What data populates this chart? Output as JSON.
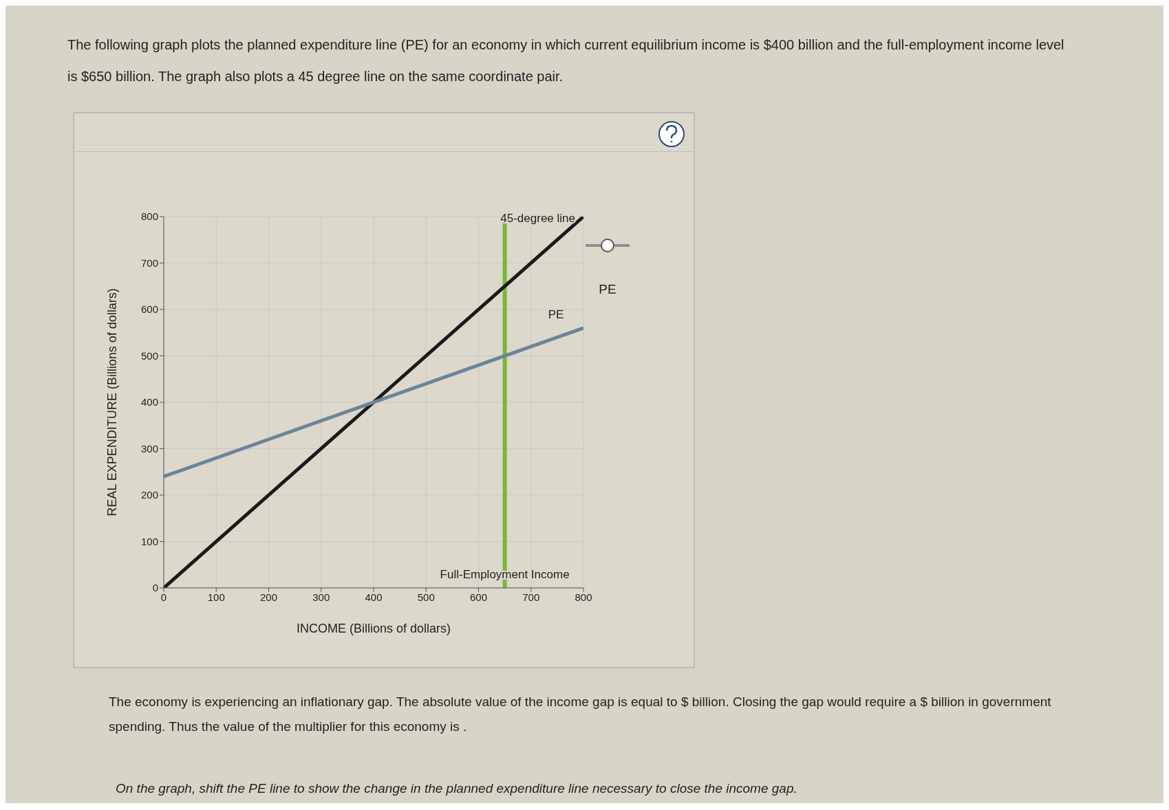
{
  "chart_data": {
    "type": "line",
    "title": "The following graph plots the planned expenditure line (PE) for an economy in which current equilibrium income is $400 billion and the full-employment income level is $650 billion. The graph also plots a 45 degree line on the same coordinate pair.",
    "xlabel": "INCOME (Billions of dollars)",
    "ylabel": "REAL EXPENDITURE (Billions of dollars)",
    "x": [
      0,
      800
    ],
    "series": [
      {
        "name": "45-degree line",
        "color": "#1a1a1a",
        "values": [
          0,
          800
        ]
      },
      {
        "name": "PE",
        "color": "#6b8499",
        "values": [
          240,
          560
        ]
      }
    ],
    "xlim": [
      0,
      800
    ],
    "xticks": [
      0,
      100,
      200,
      300,
      400,
      500,
      600,
      700,
      800
    ],
    "ylim": [
      0,
      800
    ],
    "yticks": [
      0,
      100,
      200,
      300,
      400,
      500,
      600,
      700,
      800
    ],
    "grid": true,
    "legend": false,
    "marker": "none",
    "line_style": "solid",
    "ref_lines": [
      {
        "axis": "x",
        "value": 650,
        "label": "Full-Employment Income",
        "color": "#7ab833"
      }
    ],
    "annotations": [
      "PE",
      "The economy is experiencing an inflationary gap. The absolute value of the income gap is equal to $ billion. Closing the gap would require a $ billion in government spending. Thus the value of the multiplier for this economy is .",
      "On the graph, shift the PE line to show the change in the planned expenditure line necessary to close the income gap."
    ]
  }
}
